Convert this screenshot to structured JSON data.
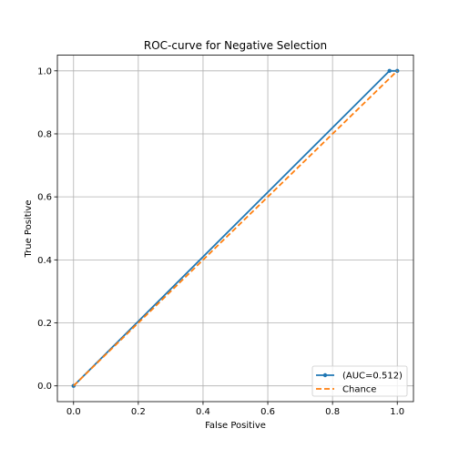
{
  "chart_data": {
    "type": "line",
    "title": "ROC-curve for Negative Selection",
    "xlabel": "False Positive",
    "ylabel": "True Positive",
    "xlim": [
      -0.05,
      1.05
    ],
    "ylim": [
      -0.05,
      1.05
    ],
    "xticks": [
      0.0,
      0.2,
      0.4,
      0.6,
      0.8,
      1.0
    ],
    "yticks": [
      0.0,
      0.2,
      0.4,
      0.6,
      0.8,
      1.0
    ],
    "grid": true,
    "legend_position": "lower-right",
    "series": [
      {
        "name": "(AUC=0.512)",
        "color": "#1f77b4",
        "style": "solid",
        "marker": "dot",
        "points": [
          [
            0.0,
            0.0
          ],
          [
            0.976,
            1.0
          ],
          [
            1.0,
            1.0
          ]
        ]
      },
      {
        "name": "Chance",
        "color": "#ff7f0e",
        "style": "dashed",
        "marker": "none",
        "points": [
          [
            0.0,
            0.0
          ],
          [
            1.0,
            1.0
          ]
        ]
      }
    ]
  }
}
